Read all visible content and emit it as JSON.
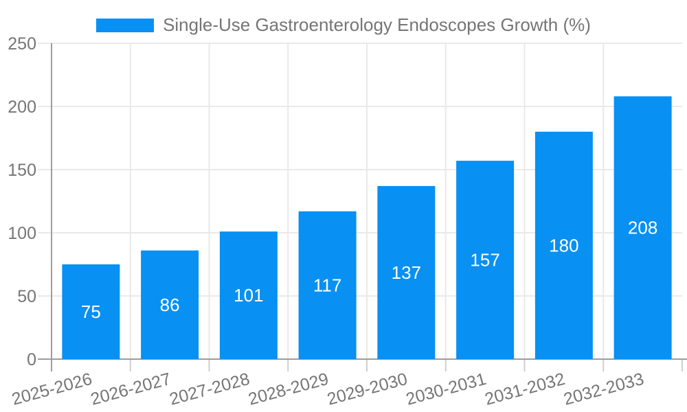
{
  "chart_data": {
    "type": "bar",
    "title": "Single-Use Gastroenterology Endoscopes Growth (%)",
    "categories": [
      "2025-2026",
      "2026-2027",
      "2027-2028",
      "2028-2029",
      "2029-2030",
      "2030-2031",
      "2031-2032",
      "2032-2033"
    ],
    "values": [
      75,
      86,
      101,
      117,
      137,
      157,
      180,
      208
    ],
    "xlabel": "",
    "ylabel": "",
    "ylim": [
      0,
      250
    ],
    "yticks": [
      0,
      50,
      100,
      150,
      200,
      250
    ],
    "grid": true,
    "legend_position": "top",
    "x_label_rotation_deg": -15,
    "bar_color": "#0890f3",
    "value_label_color": "#ffffff",
    "text_color": "#757575",
    "grid_color": "#e9e9e9",
    "tick_color": "#cfcfcf",
    "axis_color": "#9c9c9c"
  }
}
